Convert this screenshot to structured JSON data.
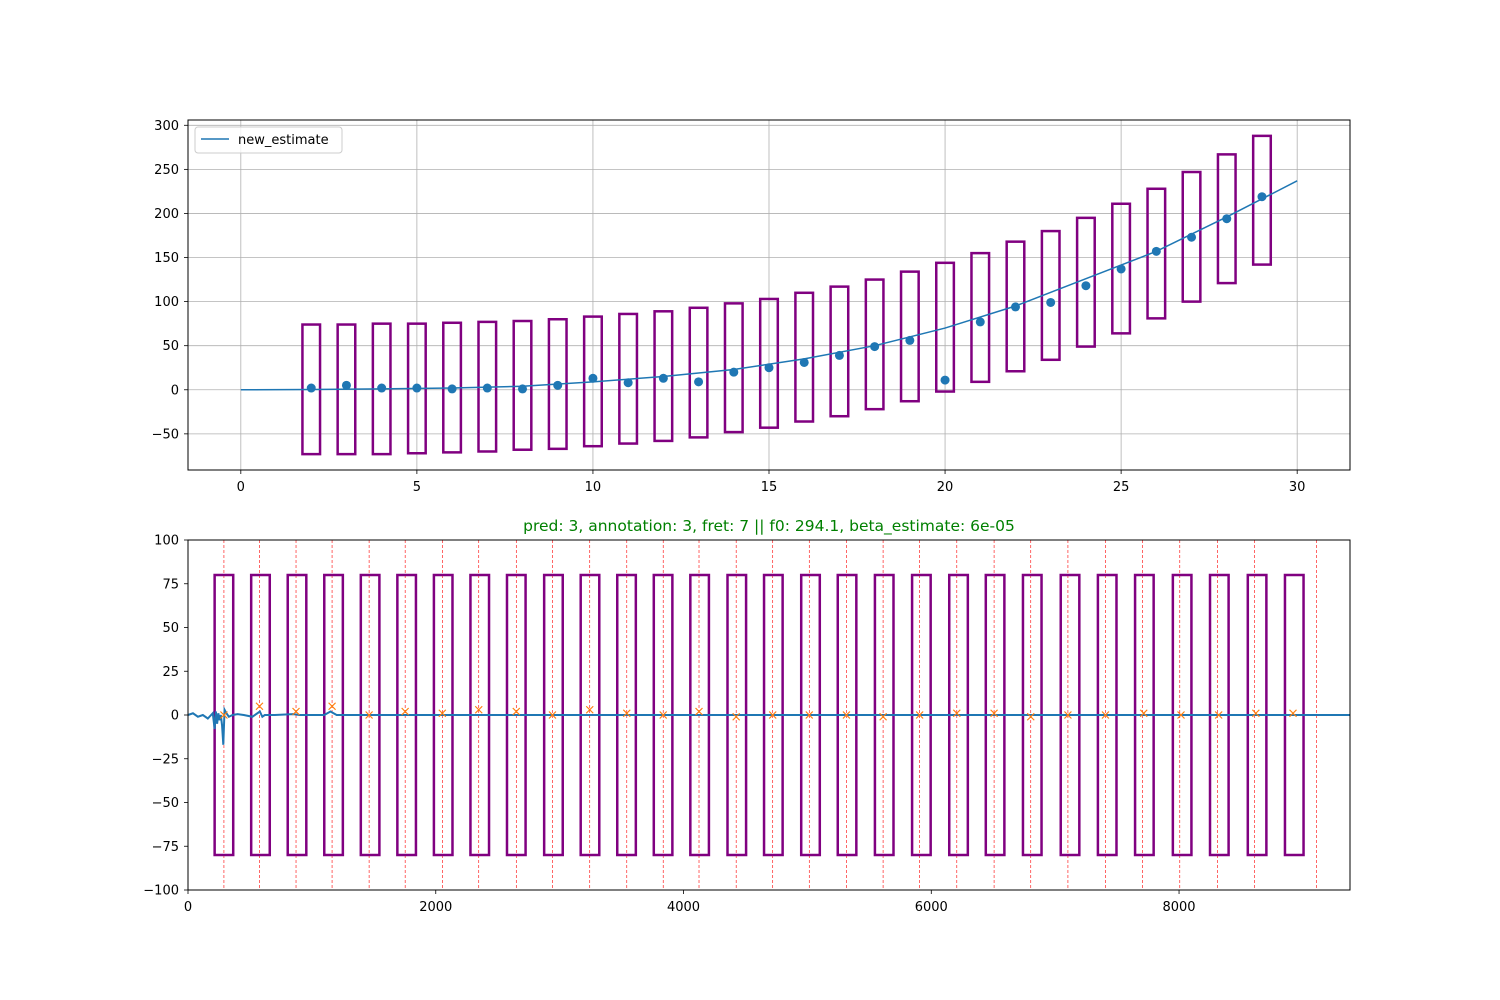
{
  "chart_data": [
    {
      "type": "line",
      "title": "",
      "xlabel": "",
      "ylabel": "",
      "xlim": [
        -1.5,
        31.5
      ],
      "ylim": [
        -91,
        306
      ],
      "grid": true,
      "legend_placement": "upper-left",
      "xticks": [
        0,
        5,
        10,
        15,
        20,
        25,
        30
      ],
      "yticks": [
        -50,
        0,
        50,
        100,
        150,
        200,
        250,
        300
      ],
      "series": [
        {
          "name": "new_estimate",
          "kind": "line",
          "color": "#1f77b4",
          "x": [
            0,
            2,
            4,
            6,
            8,
            10,
            12,
            14,
            16,
            18,
            20,
            22,
            24,
            26,
            28,
            30
          ],
          "y": [
            0,
            0.3,
            1,
            2,
            4,
            9,
            15,
            23,
            35,
            50,
            70,
            95,
            126,
            157,
            196,
            237
          ]
        },
        {
          "name": "",
          "kind": "scatter",
          "color": "#1f77b4",
          "x": [
            2,
            3,
            4,
            5,
            6,
            7,
            8,
            9,
            10,
            11,
            12,
            13,
            14,
            15,
            16,
            17,
            18,
            19,
            20,
            21,
            22,
            23,
            24,
            25,
            26,
            27,
            28,
            29
          ],
          "y": [
            2,
            5,
            2,
            2,
            1,
            2,
            1,
            5,
            13,
            8,
            13,
            9,
            20,
            25,
            31,
            39,
            49,
            56,
            11,
            77,
            94,
            99,
            118,
            137,
            157,
            173,
            194,
            219
          ]
        }
      ],
      "boxes": {
        "color": "#800080",
        "x_centers": [
          2,
          3,
          4,
          5,
          6,
          7,
          8,
          9,
          10,
          11,
          12,
          13,
          14,
          15,
          16,
          17,
          18,
          19,
          20,
          21,
          22,
          23,
          24,
          25,
          26,
          27,
          28,
          29
        ],
        "half_width": 0.25,
        "top": [
          74,
          74,
          75,
          75,
          76,
          77,
          78,
          80,
          83,
          86,
          89,
          93,
          98,
          103,
          110,
          117,
          125,
          134,
          144,
          155,
          168,
          180,
          195,
          211,
          228,
          247,
          267,
          288
        ],
        "bottom": [
          -73,
          -73,
          -73,
          -72,
          -71,
          -70,
          -68,
          -67,
          -64,
          -61,
          -58,
          -54,
          -48,
          -43,
          -36,
          -30,
          -22,
          -13,
          -2,
          9,
          21,
          34,
          49,
          64,
          81,
          100,
          121,
          142
        ]
      }
    },
    {
      "type": "line",
      "title": "pred: 3, annotation: 3, fret: 7 || f0: 294.1, beta_estimate: 6e-05",
      "title_color": "#008000",
      "xlabel": "",
      "ylabel": "",
      "xlim": [
        0,
        9380
      ],
      "ylim": [
        -100,
        100
      ],
      "grid": false,
      "xticks": [
        0,
        2000,
        4000,
        6000,
        8000
      ],
      "yticks": [
        -100,
        -75,
        -50,
        -25,
        0,
        25,
        50,
        75,
        100
      ],
      "spectrum": {
        "color": "#1f77b4",
        "x": [
          0,
          40,
          80,
          120,
          160,
          200,
          215,
          225,
          235,
          245,
          255,
          265,
          275,
          285,
          295,
          310,
          330,
          360,
          400,
          450,
          520,
          580,
          600,
          620,
          700,
          850,
          900,
          1100,
          1150,
          1200,
          1400,
          9380
        ],
        "y": [
          0,
          1,
          -1,
          0,
          -2,
          1,
          -8,
          2,
          -5,
          1,
          -3,
          0,
          -6,
          -17,
          3,
          1,
          -1,
          0,
          0.5,
          0,
          -1,
          2,
          -1,
          0,
          0,
          0.5,
          0,
          0,
          2,
          0,
          0,
          0
        ]
      },
      "peaks": {
        "color": "#ff7f0e",
        "marker": "x",
        "x": [
          290,
          577,
          872,
          1163,
          1462,
          1753,
          2053,
          2347,
          2650,
          2942,
          3243,
          3542,
          3836,
          4125,
          4425,
          4720,
          5015,
          5315,
          5611,
          5906,
          6206,
          6507,
          6803,
          7103,
          7406,
          7715,
          8016,
          8320,
          8620,
          8920
        ],
        "y": [
          0,
          5,
          2,
          5,
          0,
          2,
          1,
          3,
          2,
          0,
          3,
          1,
          0,
          2,
          -1,
          0,
          0,
          0,
          -1,
          0,
          1,
          1,
          -1,
          0,
          0,
          1,
          0,
          0,
          1,
          1
        ]
      },
      "vlines": {
        "color": "#ff0000",
        "style": "dashed",
        "x": [
          290,
          577,
          872,
          1163,
          1462,
          1753,
          2053,
          2347,
          2650,
          2942,
          3243,
          3542,
          3836,
          4125,
          4425,
          4720,
          5015,
          5315,
          5611,
          5906,
          6206,
          6507,
          6803,
          7103,
          7406,
          7706,
          8006,
          8310,
          8610,
          9110
        ]
      },
      "boxes": {
        "color": "#800080",
        "x_centers": [
          290,
          585,
          880,
          1175,
          1470,
          1765,
          2060,
          2355,
          2650,
          2950,
          3245,
          3540,
          3835,
          4130,
          4430,
          4725,
          5025,
          5320,
          5620,
          5920,
          6220,
          6515,
          6815,
          7120,
          7420,
          7720,
          8025,
          8325,
          8630,
          8930
        ],
        "half_width": 75,
        "top": 80,
        "bottom": -80
      }
    }
  ]
}
